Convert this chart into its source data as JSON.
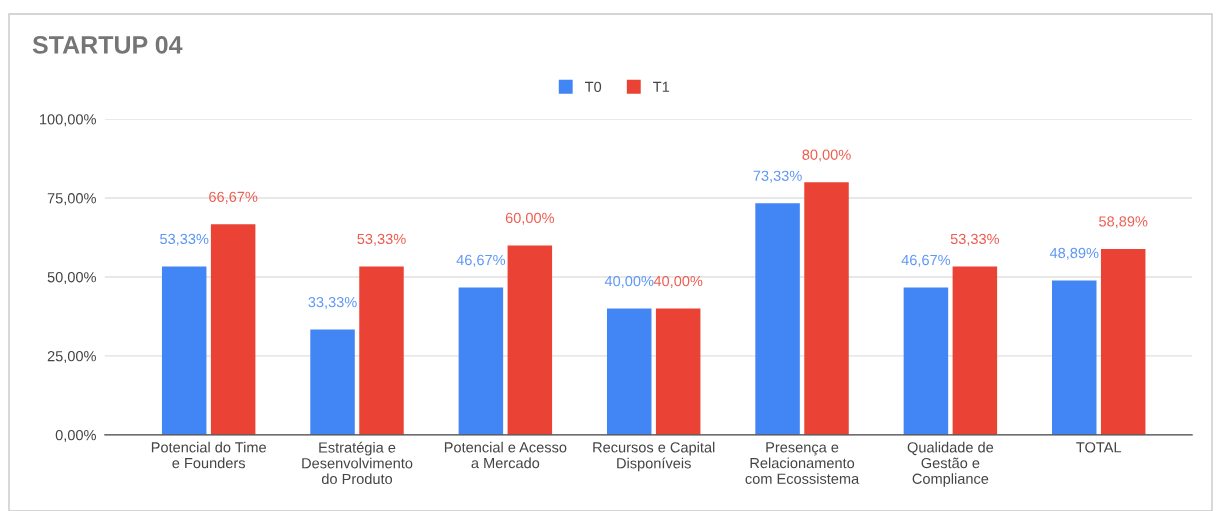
{
  "chart_data": {
    "type": "bar",
    "title": "STARTUP 04",
    "categories": [
      "Potencial do Time\ne Founders",
      "Estratégia e\nDesenvolvimento\ndo Produto",
      "Potencial e Acesso\na Mercado",
      "Recursos e Capital\nDisponíveis",
      "Presença e\nRelacionamento\ncom Ecossistema",
      "Qualidade de\nGestão e\nCompliance",
      "TOTAL"
    ],
    "series": [
      {
        "name": "T0",
        "color": "#4285f4",
        "values": [
          53.33,
          33.33,
          46.67,
          40.0,
          73.33,
          46.67,
          48.89
        ],
        "value_labels": [
          "53,33%",
          "33,33%",
          "46,67%",
          "40,00%",
          "73,33%",
          "46,67%",
          "48,89%"
        ]
      },
      {
        "name": "T1",
        "color": "#ea4335",
        "values": [
          66.67,
          53.33,
          60.0,
          40.0,
          80.0,
          53.33,
          58.89
        ],
        "value_labels": [
          "66,67%",
          "53,33%",
          "60,00%",
          "40,00%",
          "80,00%",
          "53,33%",
          "58,89%"
        ]
      }
    ],
    "ylim": [
      0,
      100
    ],
    "yticks": [
      {
        "value": 0,
        "label": "0,00%"
      },
      {
        "value": 25,
        "label": "25,00%"
      },
      {
        "value": 50,
        "label": "50,00%"
      },
      {
        "value": 75,
        "label": "75,00%"
      },
      {
        "value": 100,
        "label": "100,00%"
      }
    ],
    "grid": "y",
    "legend": "top"
  }
}
